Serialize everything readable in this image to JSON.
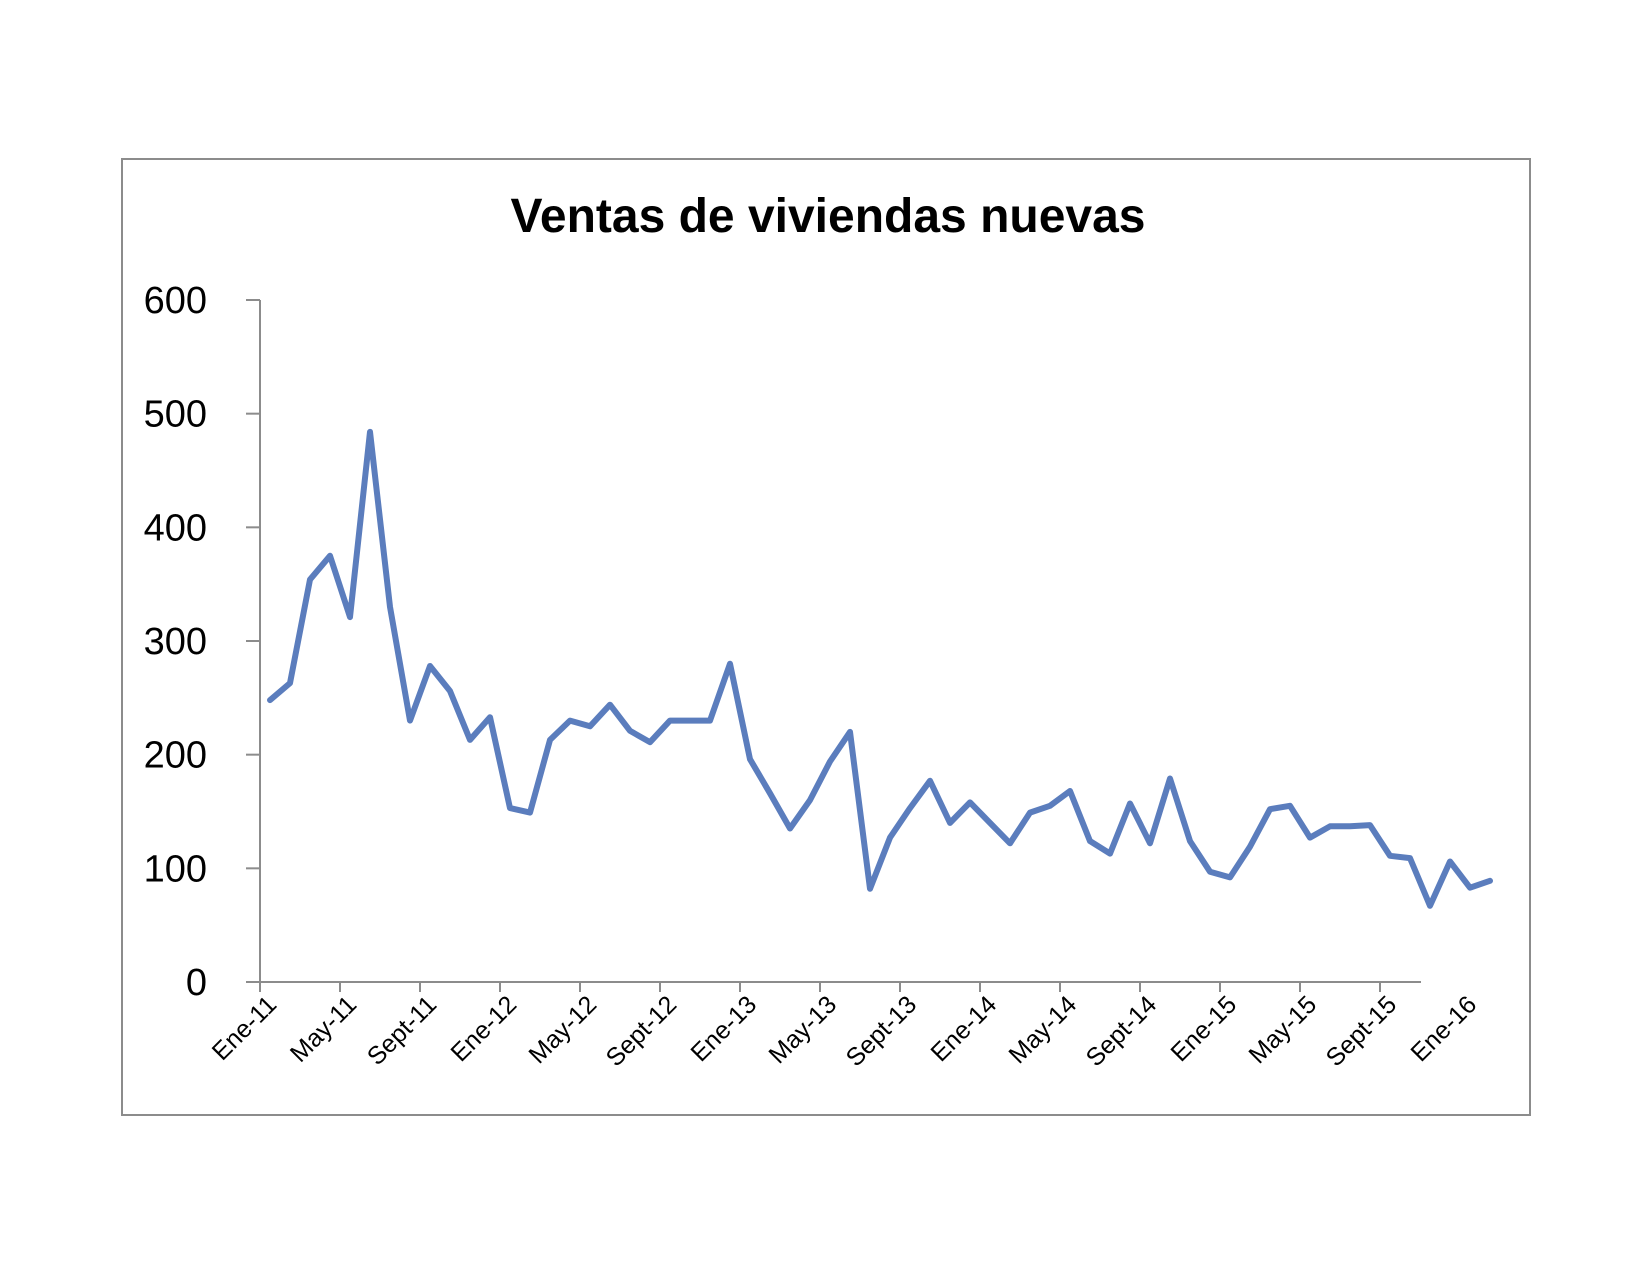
{
  "chart_data": {
    "type": "line",
    "title": "Ventas de viviendas nuevas",
    "xlabel": "",
    "ylabel": "",
    "ylim": [
      0,
      600
    ],
    "yticks": [
      "0",
      "100",
      "200",
      "300",
      "400",
      "500",
      "600"
    ],
    "xtick_labels": [
      "Ene-11",
      "May-11",
      "Sept-11",
      "Ene-12",
      "May-12",
      "Sept-12",
      "Ene-13",
      "May-13",
      "Sept-13",
      "Ene-14",
      "May-14",
      "Sept-14",
      "Ene-15",
      "May-15",
      "Sept-15",
      "Ene-16"
    ],
    "grid": false,
    "legend": "none",
    "line_color": "#5b7dbd",
    "series": [
      {
        "values": [
          248,
          263,
          354,
          375,
          321,
          484,
          330,
          230,
          278,
          256,
          213,
          233,
          153,
          149,
          213,
          230,
          225,
          244,
          221,
          211,
          230,
          230,
          230,
          280,
          196,
          166,
          135,
          160,
          194,
          220,
          82,
          127,
          153,
          177,
          140,
          158,
          140,
          122,
          149,
          155,
          168,
          124,
          113,
          157,
          122,
          179,
          124,
          97,
          92,
          119,
          152,
          155,
          127,
          137,
          137,
          138,
          111,
          109,
          67,
          106,
          83,
          89
        ]
      }
    ]
  }
}
